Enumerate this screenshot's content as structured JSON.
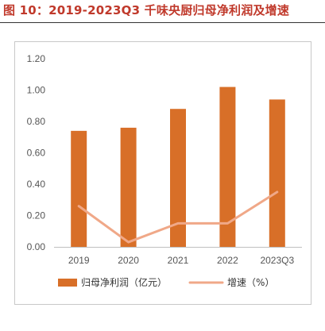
{
  "figure": {
    "caption": "图 10：2019-2023Q3 千味央厨归母净利润及增速"
  },
  "chart_data": {
    "type": "bar",
    "categories": [
      "2019",
      "2020",
      "2021",
      "2022",
      "2023Q3"
    ],
    "series": [
      {
        "name": "归母净利润（亿元）",
        "type": "bar",
        "axis": "left",
        "color": "#d86f28",
        "values": [
          0.74,
          0.76,
          0.88,
          1.02,
          0.94
        ]
      },
      {
        "name": "增速（%）",
        "type": "line",
        "axis": "secondary-hidden",
        "color": "#f0a888",
        "values": [
          0.26,
          0.03,
          0.15,
          0.15,
          0.35
        ]
      }
    ],
    "yticks": [
      "0.00",
      "0.20",
      "0.40",
      "0.60",
      "0.80",
      "1.00",
      "1.20"
    ],
    "ylim": [
      0,
      1.2
    ],
    "grid": false,
    "legend": "bottom",
    "xlabel": "",
    "ylabel": ""
  }
}
